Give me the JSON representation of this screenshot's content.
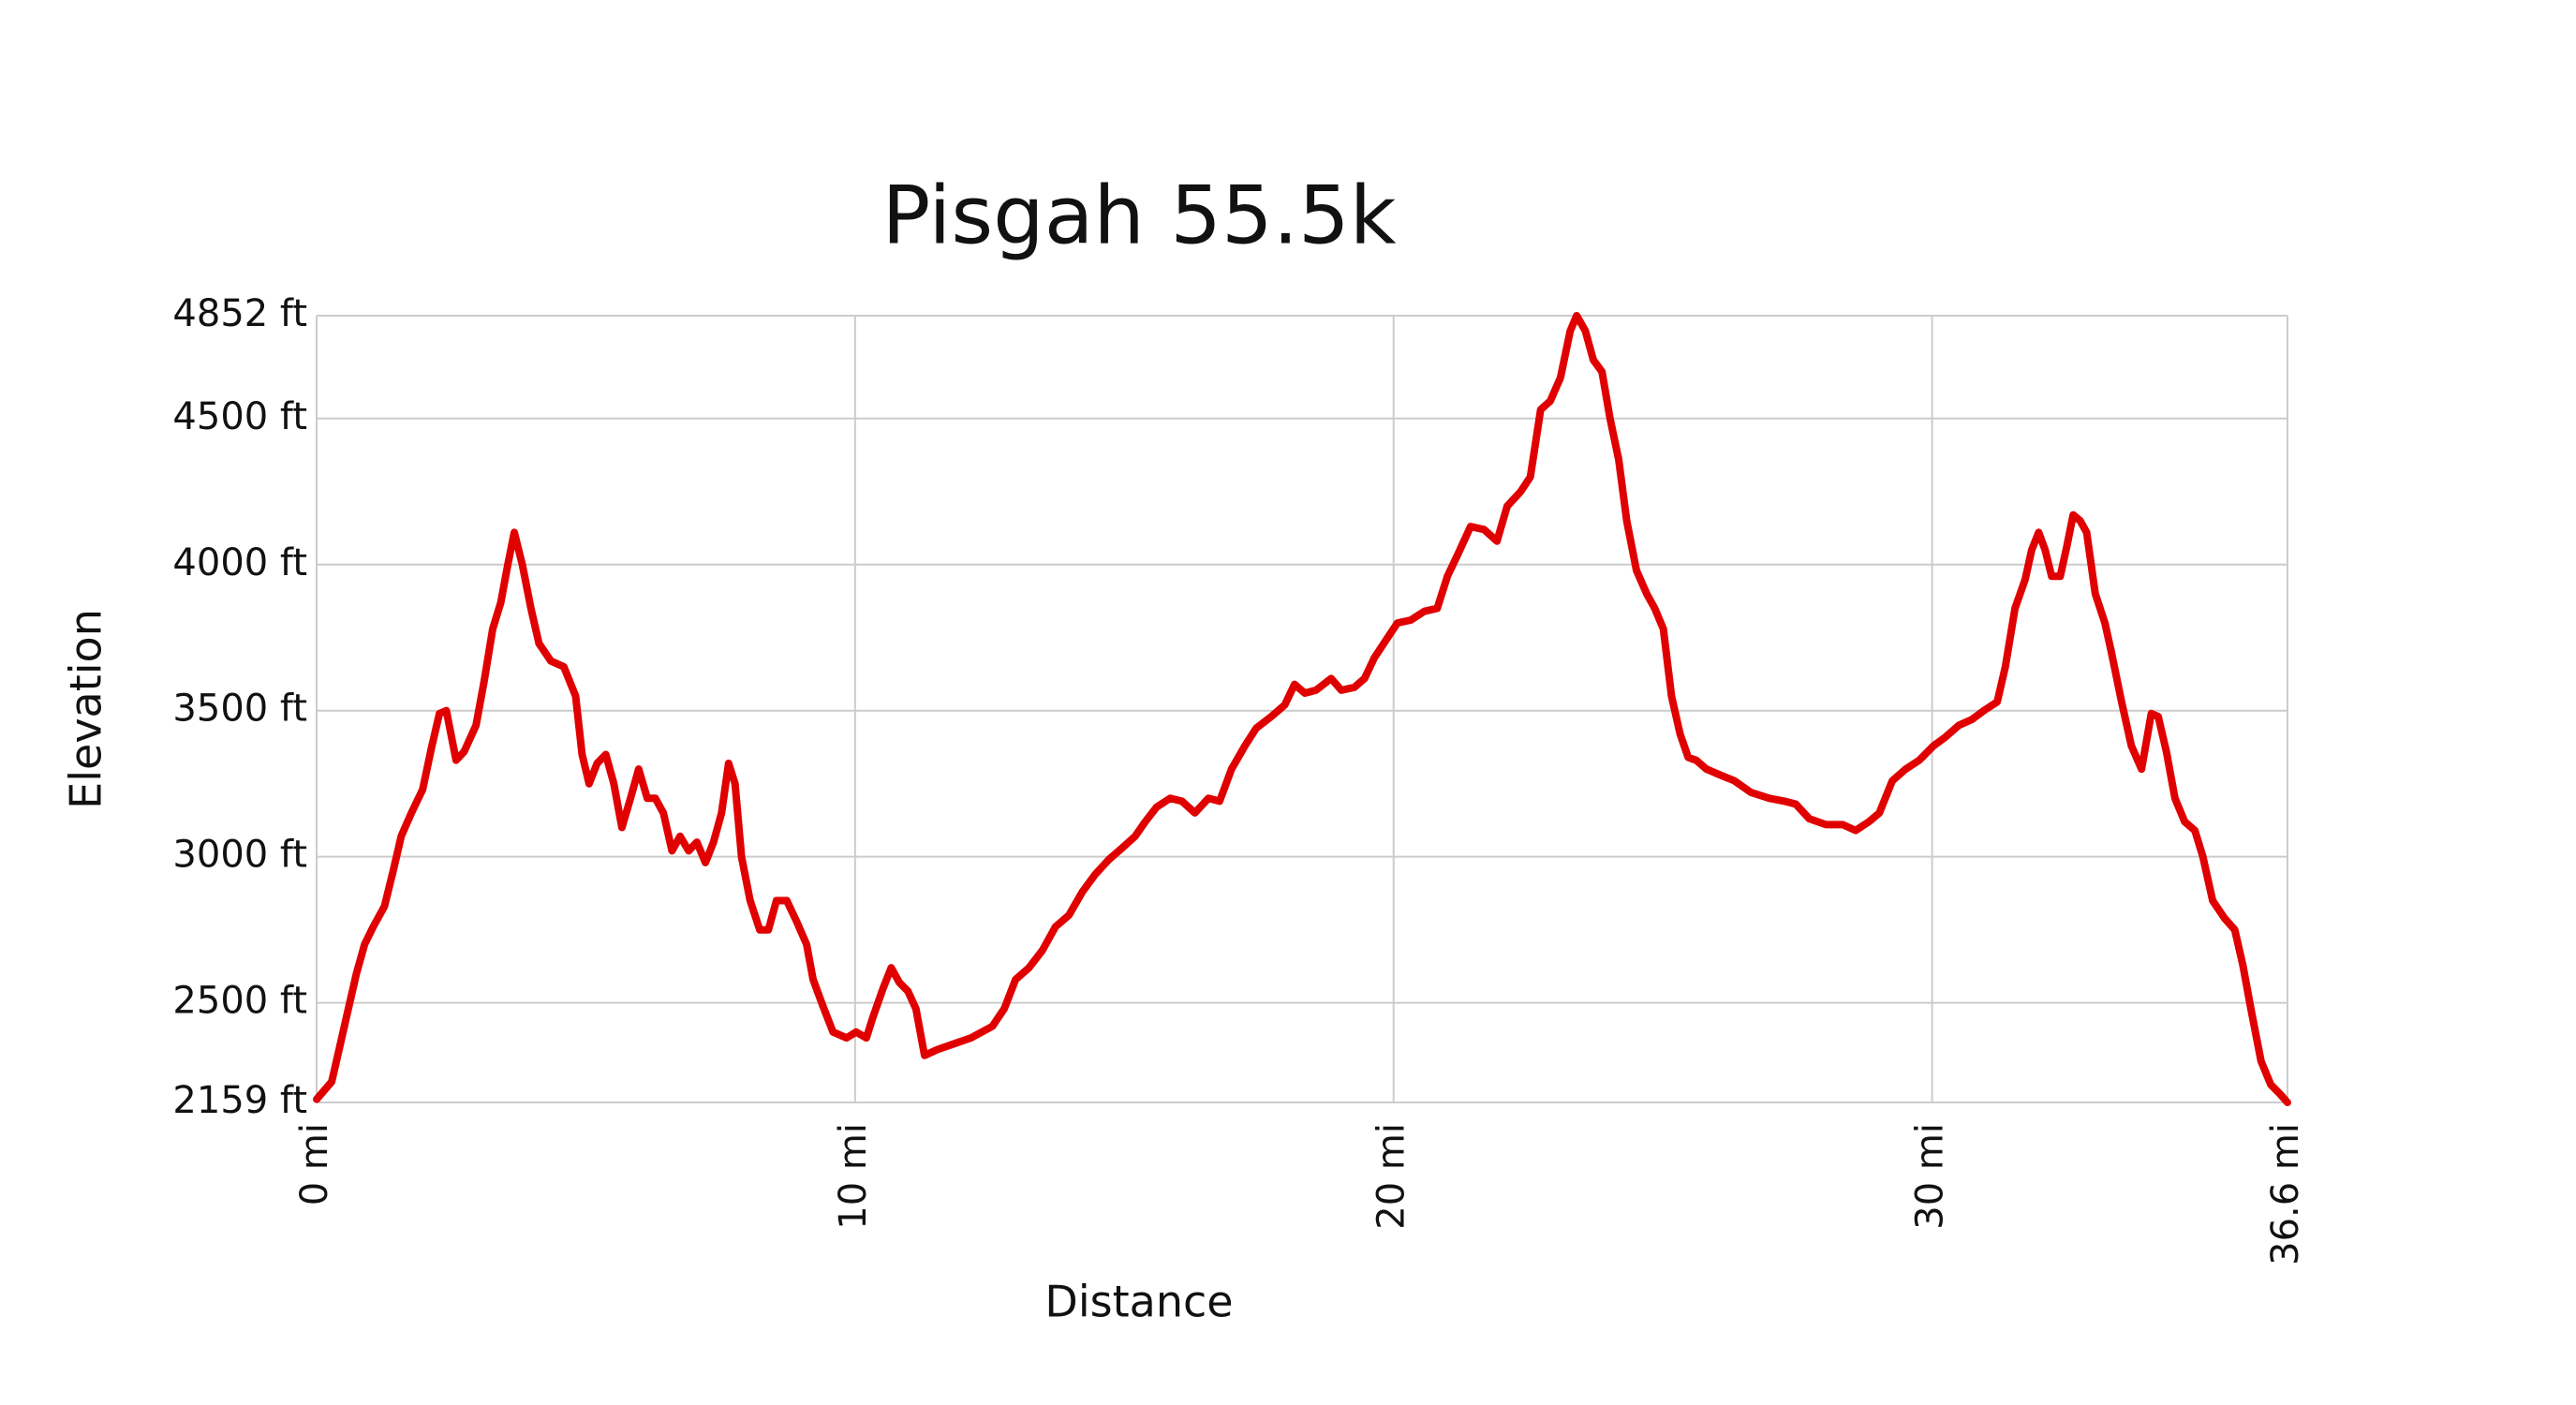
{
  "chart_data": {
    "type": "line",
    "title": "Pisgah 55.5k",
    "x_label": "Distance",
    "y_label": "Elevation",
    "color": "#e00000",
    "grid": true,
    "xlim": [
      0,
      36.6
    ],
    "ylim": [
      2159,
      4852
    ],
    "xticks": [
      {
        "value": 0,
        "label": "0 mi"
      },
      {
        "value": 10,
        "label": "10 mi"
      },
      {
        "value": 20,
        "label": "20 mi"
      },
      {
        "value": 30,
        "label": "30 mi"
      },
      {
        "value": 36.6,
        "label": "36.6 mi"
      }
    ],
    "yticks": [
      {
        "value": 2159,
        "label": "2159 ft"
      },
      {
        "value": 2500,
        "label": "2500 ft"
      },
      {
        "value": 3000,
        "label": "3000 ft"
      },
      {
        "value": 3500,
        "label": "3500 ft"
      },
      {
        "value": 4000,
        "label": "4000 ft"
      },
      {
        "value": 4500,
        "label": "4500 ft"
      },
      {
        "value": 4852,
        "label": "4852 ft"
      }
    ],
    "x": [
      0,
      0.28,
      0.43,
      0.59,
      0.74,
      0.89,
      1.05,
      1.26,
      1.42,
      1.57,
      1.76,
      1.97,
      2.13,
      2.28,
      2.41,
      2.59,
      2.74,
      2.96,
      3.11,
      3.27,
      3.42,
      3.55,
      3.67,
      3.82,
      3.98,
      4.13,
      4.35,
      4.59,
      4.81,
      4.93,
      5.06,
      5.21,
      5.37,
      5.52,
      5.67,
      5.83,
      5.98,
      6.14,
      6.29,
      6.44,
      6.6,
      6.75,
      6.91,
      7.06,
      7.22,
      7.37,
      7.52,
      7.65,
      7.77,
      7.89,
      8.05,
      8.23,
      8.39,
      8.54,
      8.73,
      8.91,
      9.1,
      9.22,
      9.4,
      9.59,
      9.84,
      10.02,
      10.21,
      10.33,
      10.52,
      10.67,
      10.82,
      10.98,
      11.13,
      11.29,
      11.53,
      11.84,
      12.15,
      12.55,
      12.77,
      12.98,
      13.23,
      13.48,
      13.72,
      13.97,
      14.22,
      14.46,
      14.71,
      14.96,
      15.2,
      15.39,
      15.6,
      15.85,
      16.07,
      16.31,
      16.56,
      16.77,
      16.99,
      17.24,
      17.45,
      17.73,
      17.98,
      18.16,
      18.35,
      18.56,
      18.84,
      19.03,
      19.27,
      19.46,
      19.64,
      19.89,
      20.07,
      20.32,
      20.57,
      20.81,
      21,
      21.18,
      21.43,
      21.68,
      21.92,
      22.11,
      22.36,
      22.54,
      22.73,
      22.91,
      23.1,
      23.28,
      23.4,
      23.56,
      23.71,
      23.87,
      24.02,
      24.18,
      24.33,
      24.51,
      24.7,
      24.85,
      25.01,
      25.16,
      25.32,
      25.47,
      25.62,
      25.81,
      26.06,
      26.33,
      26.64,
      26.98,
      27.26,
      27.47,
      27.72,
      28.03,
      28.34,
      28.58,
      28.83,
      29.02,
      29.26,
      29.51,
      29.76,
      30.03,
      30.25,
      30.5,
      30.74,
      30.96,
      31.21,
      31.36,
      31.54,
      31.73,
      31.85,
      31.98,
      32.1,
      32.22,
      32.38,
      32.5,
      32.62,
      32.75,
      32.87,
      33.03,
      33.21,
      33.33,
      33.52,
      33.7,
      33.89,
      34.07,
      34.2,
      34.35,
      34.51,
      34.69,
      34.88,
      35.03,
      35.21,
      35.43,
      35.62,
      35.77,
      35.92,
      36.11,
      36.29,
      36.45,
      36.6
    ],
    "values": [
      2170,
      2230,
      2350,
      2480,
      2600,
      2700,
      2760,
      2830,
      2950,
      3070,
      3150,
      3230,
      3370,
      3490,
      3500,
      3330,
      3360,
      3450,
      3600,
      3780,
      3870,
      4000,
      4110,
      4000,
      3850,
      3730,
      3670,
      3650,
      3550,
      3350,
      3250,
      3320,
      3350,
      3250,
      3100,
      3200,
      3300,
      3200,
      3200,
      3150,
      3020,
      3070,
      3020,
      3050,
      2980,
      3050,
      3150,
      3320,
      3250,
      3000,
      2850,
      2750,
      2750,
      2850,
      2850,
      2780,
      2700,
      2580,
      2490,
      2400,
      2380,
      2400,
      2380,
      2450,
      2550,
      2620,
      2570,
      2540,
      2480,
      2320,
      2340,
      2360,
      2380,
      2420,
      2480,
      2580,
      2620,
      2680,
      2760,
      2800,
      2880,
      2940,
      2990,
      3030,
      3070,
      3120,
      3170,
      3200,
      3190,
      3150,
      3200,
      3190,
      3300,
      3380,
      3440,
      3480,
      3520,
      3590,
      3560,
      3570,
      3610,
      3570,
      3580,
      3610,
      3680,
      3750,
      3800,
      3810,
      3840,
      3850,
      3960,
      4030,
      4130,
      4120,
      4080,
      4200,
      4250,
      4300,
      4530,
      4560,
      4640,
      4800,
      4852,
      4800,
      4700,
      4660,
      4500,
      4360,
      4150,
      3980,
      3900,
      3850,
      3780,
      3550,
      3420,
      3340,
      3330,
      3300,
      3280,
      3260,
      3220,
      3200,
      3190,
      3180,
      3130,
      3110,
      3110,
      3090,
      3120,
      3150,
      3260,
      3300,
      3330,
      3380,
      3410,
      3450,
      3470,
      3500,
      3530,
      3650,
      3850,
      3950,
      4050,
      4110,
      4050,
      3960,
      3960,
      4060,
      4170,
      4150,
      4110,
      3900,
      3800,
      3700,
      3530,
      3380,
      3300,
      3490,
      3480,
      3360,
      3200,
      3120,
      3090,
      3000,
      2850,
      2790,
      2750,
      2630,
      2480,
      2300,
      2220,
      2190,
      2159
    ]
  }
}
